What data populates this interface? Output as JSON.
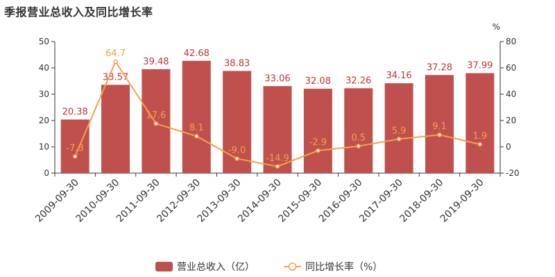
{
  "header": {
    "title": "季报营业总收入及同比增长率"
  },
  "colors": {
    "bar": "#c0504d",
    "line": "#f5a04a",
    "bar_label": "#c23531",
    "axis": "#333333"
  },
  "chart_data": {
    "type": "bar",
    "title": "季报营业总收入及同比增长率",
    "categories": [
      "2009-09-30",
      "2010-09-30",
      "2011-09-30",
      "2012-09-30",
      "2013-09-30",
      "2014-09-30",
      "2015-09-30",
      "2016-09-30",
      "2017-09-30",
      "2018-09-30",
      "2019-09-30"
    ],
    "series": [
      {
        "name": "营业总收入（亿）",
        "type": "bar",
        "axis": "left",
        "values": [
          20.38,
          33.57,
          39.48,
          42.68,
          38.83,
          33.06,
          32.08,
          32.26,
          34.16,
          37.28,
          37.99
        ],
        "labels": [
          "20.38",
          "33.57",
          "39.48",
          "42.68",
          "38.83",
          "33.06",
          "32.08",
          "32.26",
          "34.16",
          "37.28",
          "37.99"
        ]
      },
      {
        "name": "同比增长率（%）",
        "type": "line",
        "axis": "right",
        "values": [
          -7.3,
          64.7,
          17.6,
          8.1,
          -9.0,
          -14.9,
          -2.9,
          0.5,
          5.9,
          9.1,
          1.9
        ],
        "labels": [
          "-7.3",
          "64.7",
          "17.6",
          "8.1",
          "-9.0",
          "-14.9",
          "-2.9",
          "0.5",
          "5.9",
          "9.1",
          "1.9"
        ]
      }
    ],
    "y_left": {
      "min": 0,
      "max": 50,
      "ticks": [
        "0",
        "10",
        "20",
        "30",
        "40",
        "50"
      ]
    },
    "y_right": {
      "label": "%",
      "min": -20,
      "max": 80,
      "ticks": [
        "-20",
        "0",
        "20",
        "40",
        "60",
        "80"
      ]
    },
    "grid": false,
    "legend_position": "bottom"
  }
}
